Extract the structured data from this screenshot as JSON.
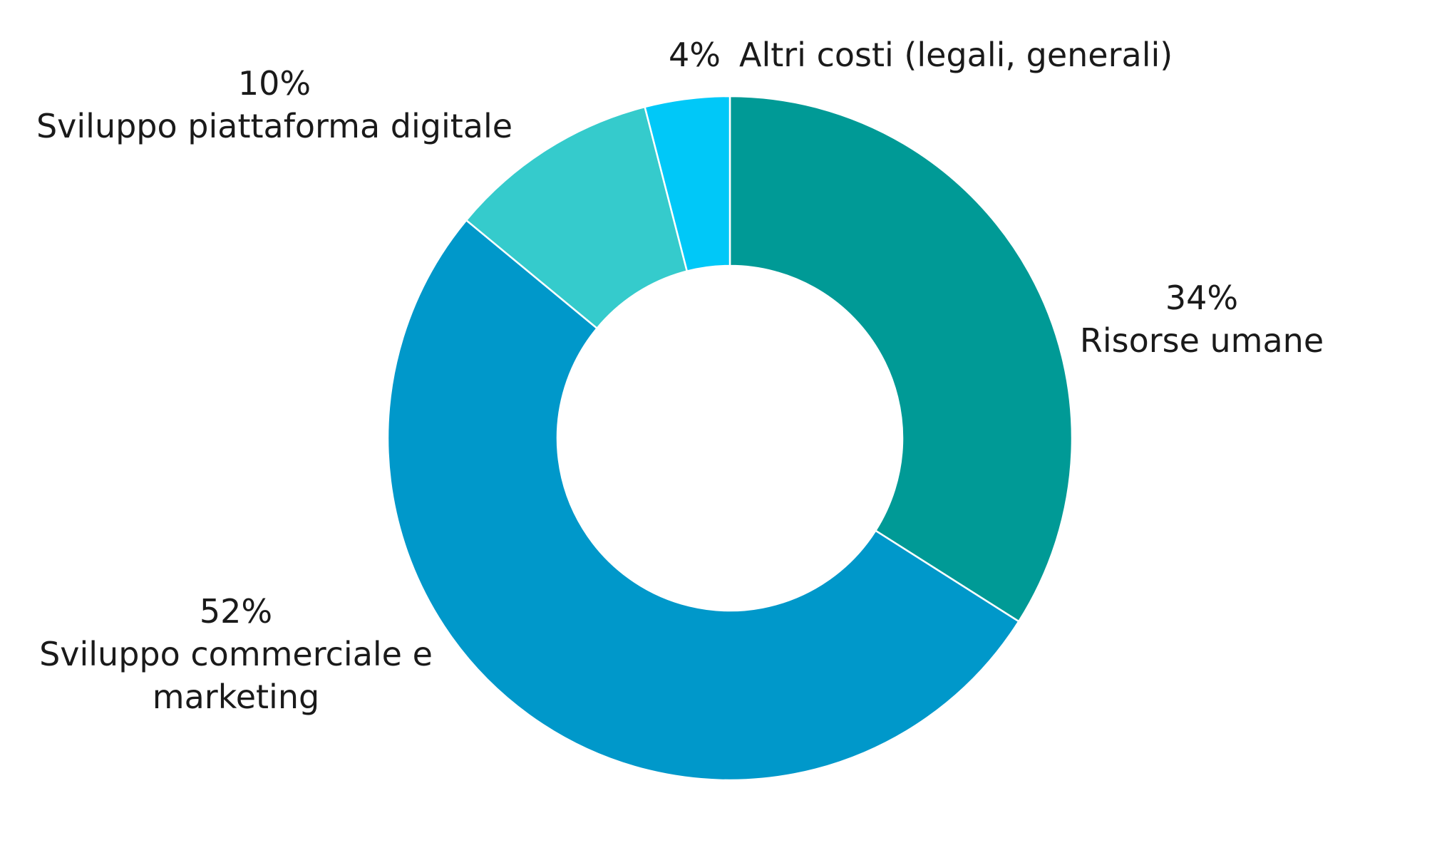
{
  "chart_data": {
    "type": "pie",
    "donut": true,
    "slices": [
      {
        "percent_label": "34%",
        "category_lines": [
          "Risorse umane"
        ],
        "value": 34,
        "color": "#009a96"
      },
      {
        "percent_label": "52%",
        "category_lines": [
          "Sviluppo commerciale e",
          "marketing"
        ],
        "value": 52,
        "color": "#0098ca"
      },
      {
        "percent_label": "10%",
        "category_lines": [
          "Sviluppo piattaforma digitale"
        ],
        "value": 10,
        "color": "#35cbcc"
      },
      {
        "percent_label": "4%",
        "category_lines": [
          "Altri costi (legali, generali)"
        ],
        "value": 4,
        "color": "#00c8f8"
      }
    ]
  }
}
